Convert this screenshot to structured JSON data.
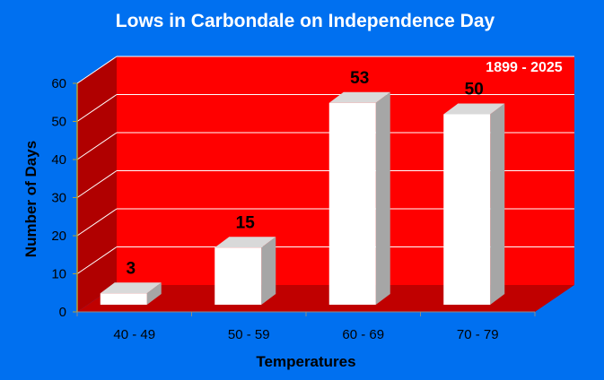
{
  "chart_data": {
    "type": "bar",
    "title": "Lows in Carbondale on Independence Day",
    "annotation": "1899 - 2025",
    "xlabel": "Temperatures",
    "ylabel": "Number of Days",
    "categories": [
      "40 - 49",
      "50 - 59",
      "60 - 69",
      "70 - 79"
    ],
    "values": [
      3,
      15,
      53,
      50
    ],
    "data_labels": [
      "3",
      "15",
      "53",
      "50"
    ],
    "ylim": [
      0,
      60
    ],
    "yticks": [
      0,
      10,
      20,
      30,
      40,
      50,
      60
    ],
    "grid": true,
    "legend": "none",
    "style": "3d",
    "colors": {
      "background": "#0070f0",
      "back_wall": "#ff0000",
      "side_wall": "#b00000",
      "floor": "#c00000",
      "bar_front": "#ffffff",
      "bar_top": "#d9d9d9",
      "bar_side": "#a6a6a6",
      "gridline": "#ffffff",
      "axis_line": "#b5a23a"
    }
  }
}
